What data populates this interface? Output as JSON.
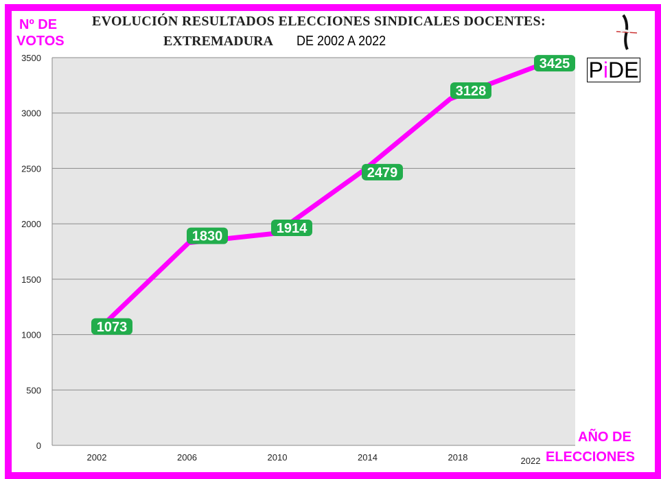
{
  "chart_data": {
    "type": "line",
    "title": "EVOLUCIÓN RESULTADOS ELECCIONES SINDICALES DOCENTES:",
    "subtitle_serif": "EXTREMADURA",
    "subtitle_sans": "DE 2002 A 2022",
    "ylabel_lines": [
      "Nº DE",
      "VOTOS"
    ],
    "xlabel_lines": [
      "AÑO DE",
      "ELECCIONES"
    ],
    "categories": [
      "2002",
      "2006",
      "2010",
      "2014",
      "2018",
      "2022"
    ],
    "values": [
      1073,
      1830,
      1914,
      2479,
      3128,
      3425
    ],
    "data_labels": [
      "1073",
      "1830",
      "1914",
      "2479",
      "3128",
      "3425"
    ],
    "ylim": [
      0,
      3500
    ],
    "yticks": [
      "0",
      "500",
      "1000",
      "1500",
      "2000",
      "2500",
      "3000",
      "3500"
    ],
    "grid": true,
    "line_color": "#ff00ff",
    "label_color": "#22ad4c",
    "plot_bg": "#e6e6e6"
  },
  "logo": {
    "text_start": "P",
    "text_i": "i",
    "text_end": "DE"
  }
}
